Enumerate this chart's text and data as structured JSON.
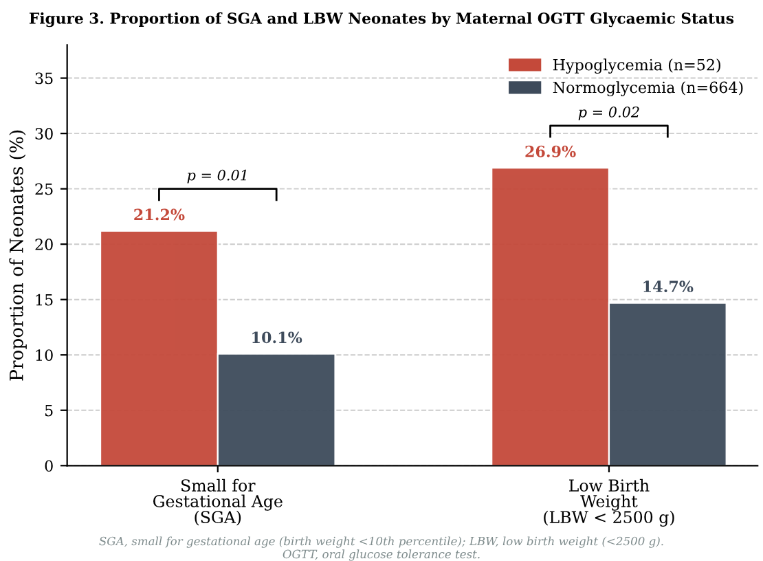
{
  "chart_data": {
    "type": "bar",
    "title": "Figure 3. Proportion of SGA and LBW Neonates by Maternal OGTT Glycaemic Status",
    "ylabel": "Proportion of Neonates (%)",
    "categories": [
      "Small for\nGestational Age\n(SGA)",
      "Low Birth\nWeight\n(LBW < 2500 g)"
    ],
    "series": [
      {
        "name": "Hypoglycemia (n=52)",
        "color": "#c4493a",
        "values": [
          21.2,
          26.9
        ],
        "value_labels": [
          "21.2%",
          "26.9%"
        ]
      },
      {
        "name": "Normoglycemia (n=664)",
        "color": "#3e4b5b",
        "values": [
          10.1,
          14.7
        ],
        "value_labels": [
          "10.1%",
          "14.7%"
        ]
      }
    ],
    "ylim": [
      0,
      38
    ],
    "yticks": [
      0,
      5,
      10,
      15,
      20,
      25,
      30,
      35
    ],
    "grid": "y",
    "legend": "top right",
    "annotations": [
      "p = 0.01",
      "p = 0.02",
      "SGA, small for gestational age (birth weight <10th percentile); LBW, low birth weight (<2500 g).\nOGTT, oral glucose tolerance test."
    ]
  }
}
